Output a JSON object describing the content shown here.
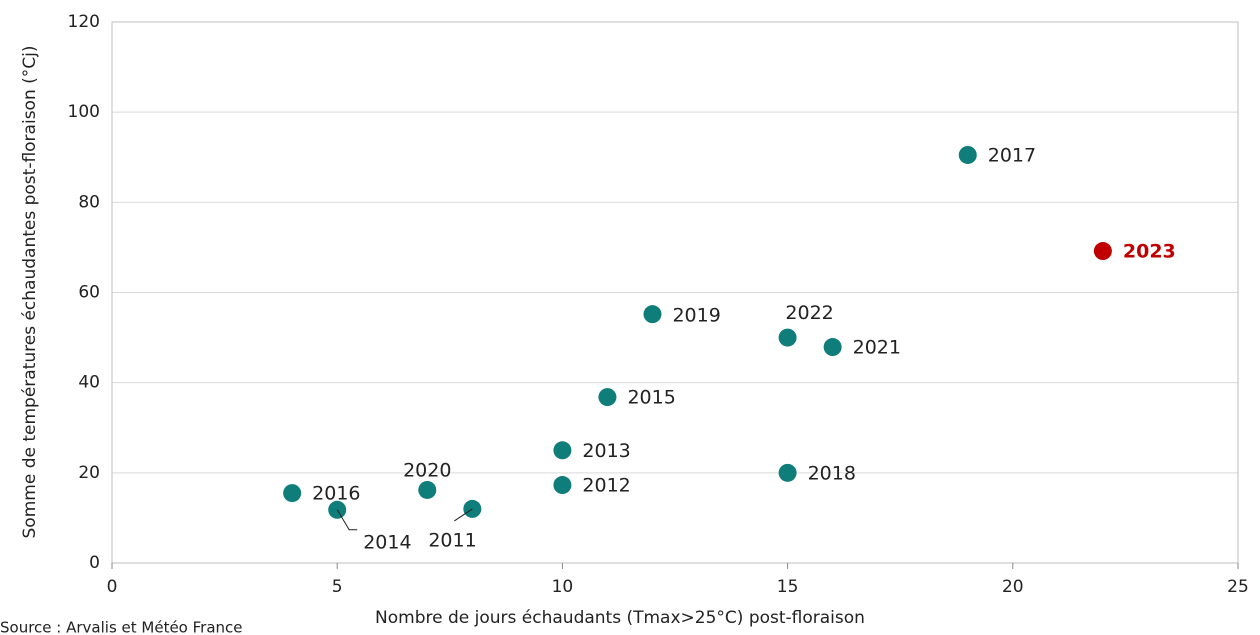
{
  "chart_data": {
    "type": "scatter",
    "x_label": "Nombre de jours échaudants (Tmax>25°C) post-floraison",
    "y_label": "Somme de températures échaudantes post-floraison (°Cj)",
    "source": "Source : Arvalis et Météo France",
    "labels": [
      "2016",
      "2014",
      "2020",
      "2011",
      "2012",
      "2013",
      "2015",
      "2019",
      "2022",
      "2021",
      "2018",
      "2017",
      "2023"
    ],
    "x": [
      4,
      5,
      7,
      8,
      10,
      10,
      11,
      12,
      15,
      16,
      15,
      19,
      22
    ],
    "y": [
      15.5,
      11.8,
      16.2,
      12,
      17.3,
      25,
      36.8,
      55.2,
      50,
      47.9,
      20,
      90.5,
      69.2
    ],
    "colors": [
      "#0f7d7a",
      "#0f7d7a",
      "#0f7d7a",
      "#0f7d7a",
      "#0f7d7a",
      "#0f7d7a",
      "#0f7d7a",
      "#0f7d7a",
      "#0f7d7a",
      "#0f7d7a",
      "#0f7d7a",
      "#0f7d7a",
      "#c00000"
    ],
    "xlim": [
      0,
      25
    ],
    "xticks": [
      0,
      5,
      10,
      15,
      20,
      25
    ],
    "ylim": [
      0,
      120
    ],
    "yticks": [
      0,
      20,
      40,
      60,
      80,
      100,
      120
    ],
    "grid": true
  }
}
